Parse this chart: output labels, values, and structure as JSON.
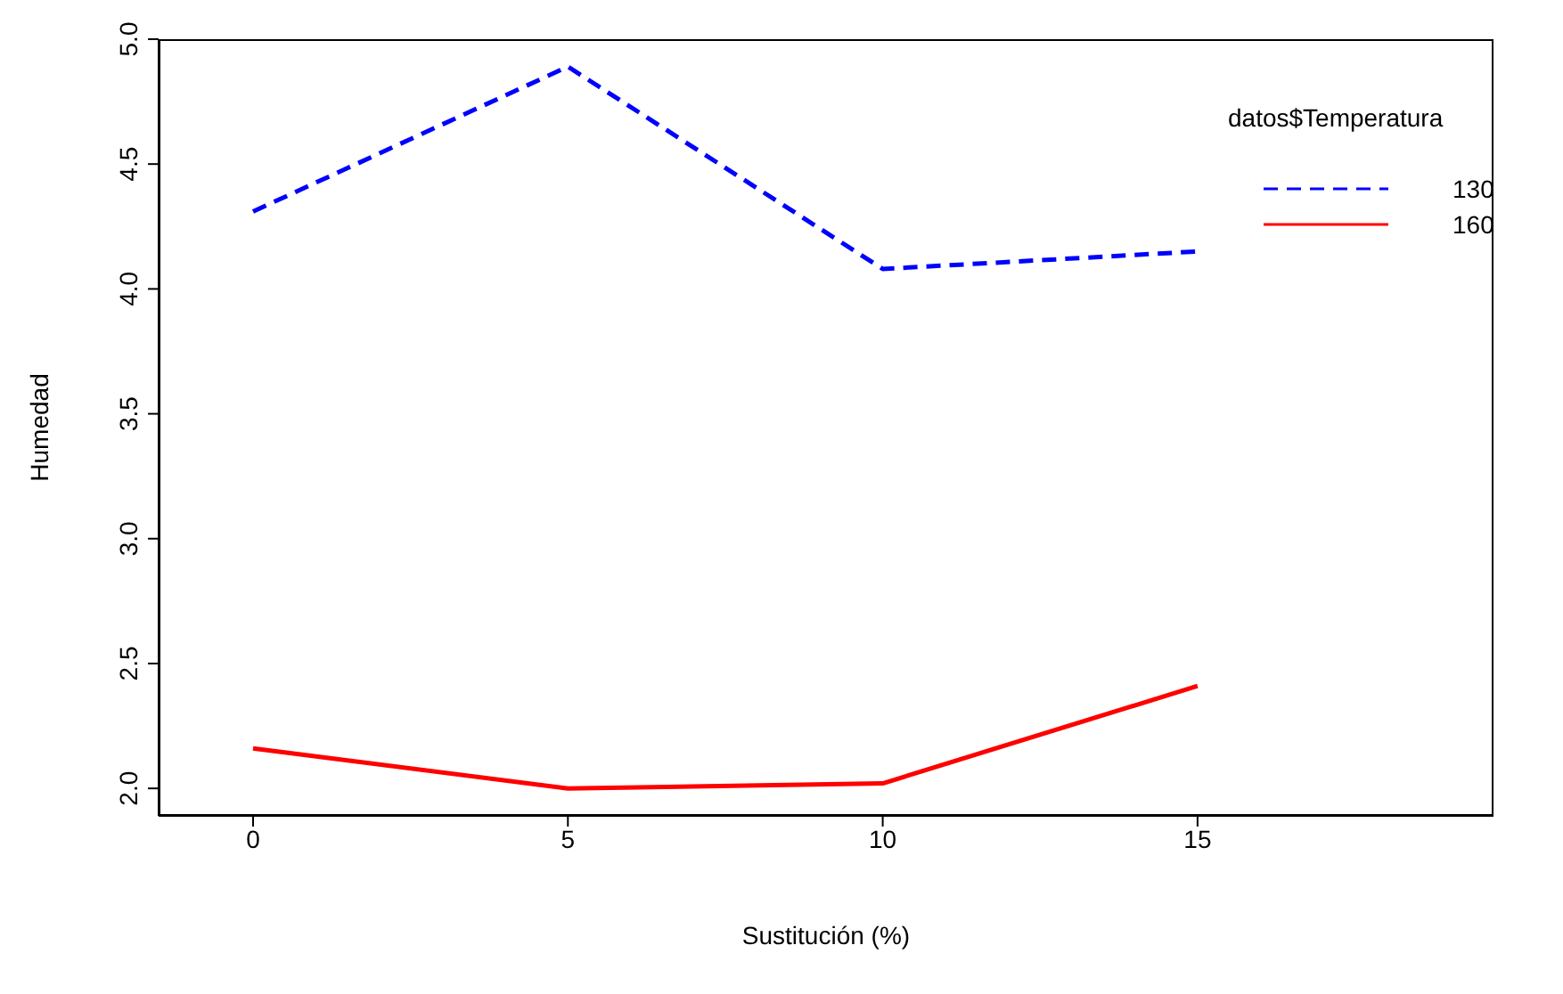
{
  "chart_data": {
    "type": "line",
    "xlabel": "Sustitución (%)",
    "ylabel": "Humedad",
    "legend_title": "datos$Temperatura",
    "x": [
      0,
      5,
      10,
      15
    ],
    "xlim": [
      -1.5,
      19.7
    ],
    "xticks": [
      0,
      5,
      10,
      15
    ],
    "ylim": [
      1.89,
      5.0
    ],
    "yticks": [
      {
        "value": 2,
        "label": "2.0"
      },
      2.5,
      {
        "value": 3,
        "label": "3.0"
      },
      3.5,
      {
        "value": 4,
        "label": "4.0"
      },
      4.5,
      {
        "value": 5,
        "label": "5.0"
      }
    ],
    "grid": false,
    "legend": "top right",
    "marker": "none",
    "series": [
      {
        "name": "130",
        "color": "#0000ff",
        "line_style": "dashed",
        "values": [
          4.31,
          4.89,
          4.08,
          4.15
        ]
      },
      {
        "name": "160",
        "color": "#ff0000",
        "line_style": "solid",
        "values": [
          2.16,
          2.0,
          2.02,
          2.41
        ]
      }
    ]
  }
}
